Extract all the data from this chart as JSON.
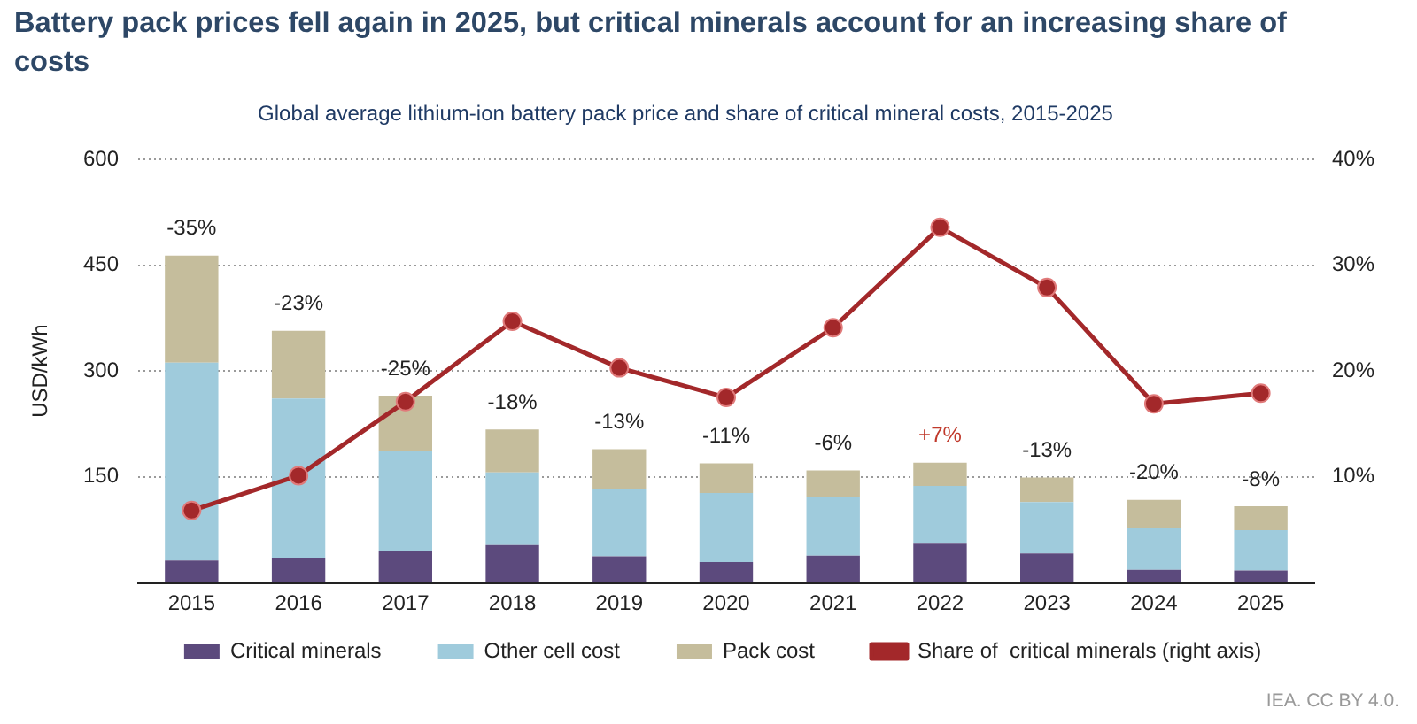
{
  "chart_data": {
    "type": "bar",
    "stacked": true,
    "title": "Battery pack prices fell again in 2025, but critical minerals account for an increasing share of costs",
    "subtitle": "Global average lithium-ion battery pack price and share of critical mineral costs, 2015-2025",
    "ylabel": "USD/kWh",
    "categories": [
      "2015",
      "2016",
      "2017",
      "2018",
      "2019",
      "2020",
      "2021",
      "2022",
      "2023",
      "2024",
      "2025"
    ],
    "series": [
      {
        "name": "Critical minerals",
        "type": "bar",
        "color": "#5c4a7d",
        "values": [
          31,
          35,
          44,
          53,
          37,
          29,
          38,
          55,
          41,
          18,
          17
        ]
      },
      {
        "name": "Other cell cost",
        "type": "bar",
        "color": "#9fcbdc",
        "values": [
          281,
          226,
          143,
          103,
          95,
          98,
          83,
          82,
          73,
          59,
          57
        ]
      },
      {
        "name": "Pack cost",
        "type": "bar",
        "color": "#c5bd9c",
        "values": [
          152,
          96,
          78,
          61,
          57,
          42,
          38,
          33,
          35,
          40,
          34
        ]
      },
      {
        "name": "Share of  critical minerals (right axis)",
        "type": "line",
        "axis": "y2",
        "color": "#a3282a",
        "values": [
          6.8,
          10.1,
          17.1,
          24.7,
          20.3,
          17.5,
          24.1,
          33.6,
          27.9,
          16.9,
          17.9
        ]
      }
    ],
    "ylim": [
      0,
      600
    ],
    "yticks": [
      150,
      300,
      450,
      600
    ],
    "y2lim": [
      0,
      40
    ],
    "y2ticks": [
      {
        "value": 10,
        "label": "10%"
      },
      {
        "value": 20,
        "label": "20%"
      },
      {
        "value": 30,
        "label": "30%"
      },
      {
        "value": 40,
        "label": "40%"
      }
    ],
    "grid": "y",
    "legend": "bottom",
    "marker": "circle",
    "line_style": "solid",
    "annotations": [
      {
        "text": "-35%",
        "x": "2015",
        "y": 464
      },
      {
        "text": "-23%",
        "x": "2016",
        "y": 357
      },
      {
        "text": "-25%",
        "x": "2017",
        "y": 265
      },
      {
        "text": "-18%",
        "x": "2018",
        "y": 217
      },
      {
        "text": "-13%",
        "x": "2019",
        "y": 189
      },
      {
        "text": "-11%",
        "x": "2020",
        "y": 169
      },
      {
        "text": "-6%",
        "x": "2021",
        "y": 159
      },
      {
        "text": "+7%",
        "x": "2022",
        "y": 170
      },
      {
        "text": "-13%",
        "x": "2023",
        "y": 149
      },
      {
        "text": "-20%",
        "x": "2024",
        "y": 117
      },
      {
        "text": "-8%",
        "x": "2025",
        "y": 108
      },
      "IEA. CC BY 4.0."
    ]
  }
}
